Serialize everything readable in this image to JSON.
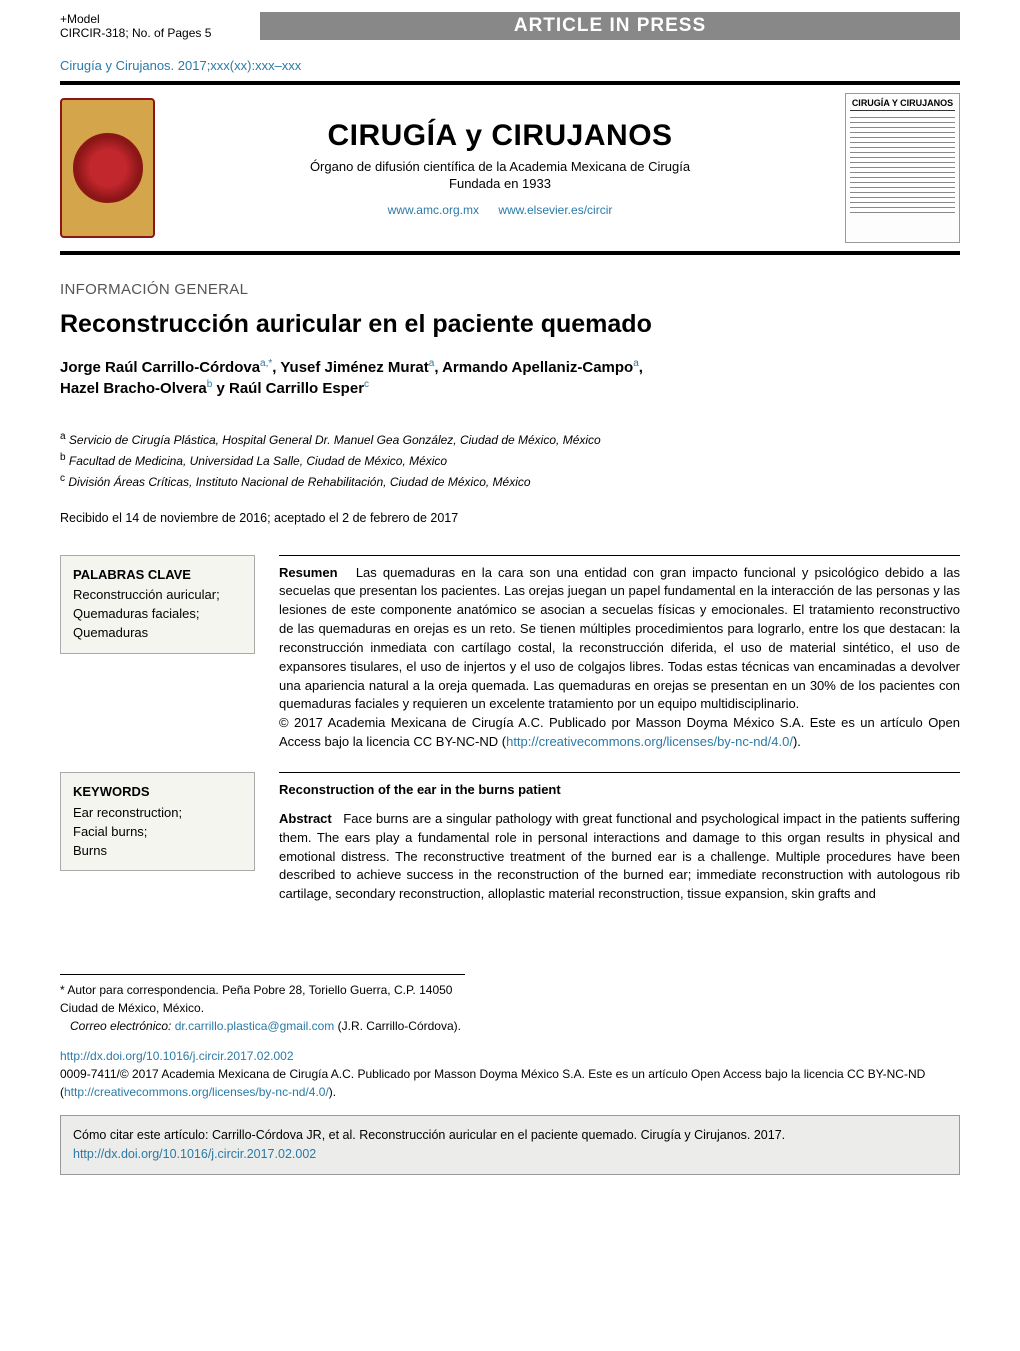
{
  "topbar": {
    "model": "+Model",
    "ref": "CIRCIR-318;   No. of Pages 5",
    "banner": "ARTICLE IN PRESS"
  },
  "citation_line": "Cirugía y Cirujanos. 2017;xxx(xx):xxx–xxx",
  "journal_header": {
    "title": "CIRUGÍA y CIRUJANOS",
    "subtitle1": "Órgano de difusión científica de la Academia Mexicana de Cirugía",
    "subtitle2": "Fundada en 1933",
    "link1": "www.amc.org.mx",
    "link2": "www.elsevier.es/circir",
    "cover_title": "CIRUGÍA Y CIRUJANOS"
  },
  "section_type": "INFORMACIÓN GENERAL",
  "article_title": "Reconstrucción auricular en el paciente quemado",
  "authors_html": {
    "a1_name": "Jorge Raúl Carrillo-Córdova",
    "a1_sup": "a,*",
    "a2_name": "Yusef Jiménez Murat",
    "a2_sup": "a",
    "a3_name": "Armando Apellaniz-Campo",
    "a3_sup": "a",
    "a4_name": "Hazel Bracho-Olvera",
    "a4_sup": "b",
    "a5_name": "Raúl Carrillo Esper",
    "a5_sup": "c",
    "conj": " y "
  },
  "affiliations": {
    "a": "Servicio de Cirugía Plástica, Hospital General Dr. Manuel Gea González, Ciudad de México, México",
    "b": "Facultad de Medicina, Universidad La Salle, Ciudad de México, México",
    "c": "División Áreas Críticas, Instituto Nacional de Rehabilitación, Ciudad de México, México"
  },
  "dates": "Recibido el 14 de noviembre de 2016; aceptado el 2 de febrero de 2017",
  "spanish": {
    "kw_heading": "PALABRAS CLAVE",
    "kw_list": "Reconstrucción auricular;\nQuemaduras faciales;\nQuemaduras",
    "lead": "Resumen",
    "body": "Las quemaduras en la cara son una entidad con gran impacto funcional y psicológico debido a las secuelas que presentan los pacientes. Las orejas juegan un papel fundamental en la interacción de las personas y las lesiones de este componente anatómico se asocian a secuelas físicas y emocionales. El tratamiento reconstructivo de las quemaduras en orejas es un reto. Se tienen múltiples procedimientos para lograrlo, entre los que destacan: la reconstrucción inmediata con cartílago costal, la reconstrucción diferida, el uso de material sintético, el uso de expansores tisulares, el uso de injertos y el uso de colgajos libres. Todas estas técnicas van encaminadas a devolver una apariencia natural a la oreja quemada. Las quemaduras en orejas se presentan en un 30% de los pacientes con quemaduras faciales y requieren un excelente tratamiento por un equipo multidisciplinario.",
    "copyright": "© 2017 Academia Mexicana de Cirugía A.C. Publicado por Masson Doyma México S.A. Este es un artículo Open Access bajo la licencia CC BY-NC-ND (",
    "license_link": "http://creativecommons.org/licenses/by-nc-nd/4.0/",
    "close": ")."
  },
  "english": {
    "kw_heading": "KEYWORDS",
    "kw_list": "Ear reconstruction;\nFacial burns;\nBurns",
    "title": "Reconstruction of the ear in the burns patient",
    "lead": "Abstract",
    "body": "Face burns are a singular pathology with great functional and psychological impact in the patients suffering them. The ears play a fundamental role in personal interactions and damage to this organ results in physical and emotional distress. The reconstructive treatment of the burned ear is a challenge. Multiple procedures have been described to achieve success in the reconstruction of the burned ear; immediate reconstruction with autologous rib cartilage, secondary reconstruction, alloplastic material reconstruction, tissue expansion, skin grafts and"
  },
  "footnotes": {
    "corr": "* Autor para correspondencia. Peña Pobre 28, Toriello Guerra, C.P. 14050 Ciudad de México, México.",
    "email_label": "Correo electrónico: ",
    "email": "dr.carrillo.plastica@gmail.com",
    "email_paren": " (J.R. Carrillo-Córdova).",
    "doi": "http://dx.doi.org/10.1016/j.circir.2017.02.002",
    "issn_line": "0009-7411/© 2017 Academia Mexicana de Cirugía A.C. Publicado por Masson Doyma México S.A. Este es un artículo Open Access bajo la licencia CC BY-NC-ND (",
    "issn_link": "http://creativecommons.org/licenses/by-nc-nd/4.0/",
    "issn_close": ")."
  },
  "howtocite": {
    "text": "Cómo citar este artículo: Carrillo-Córdova JR, et al. Reconstrucción auricular en el paciente quemado. Cirugía y Cirujanos. 2017. ",
    "link": "http://dx.doi.org/10.1016/j.circir.2017.02.002"
  },
  "colors": {
    "link": "#2a7aa8",
    "banner_bg": "#888888",
    "kw_bg": "#f5f5f0",
    "cite_bg": "#ececea"
  }
}
